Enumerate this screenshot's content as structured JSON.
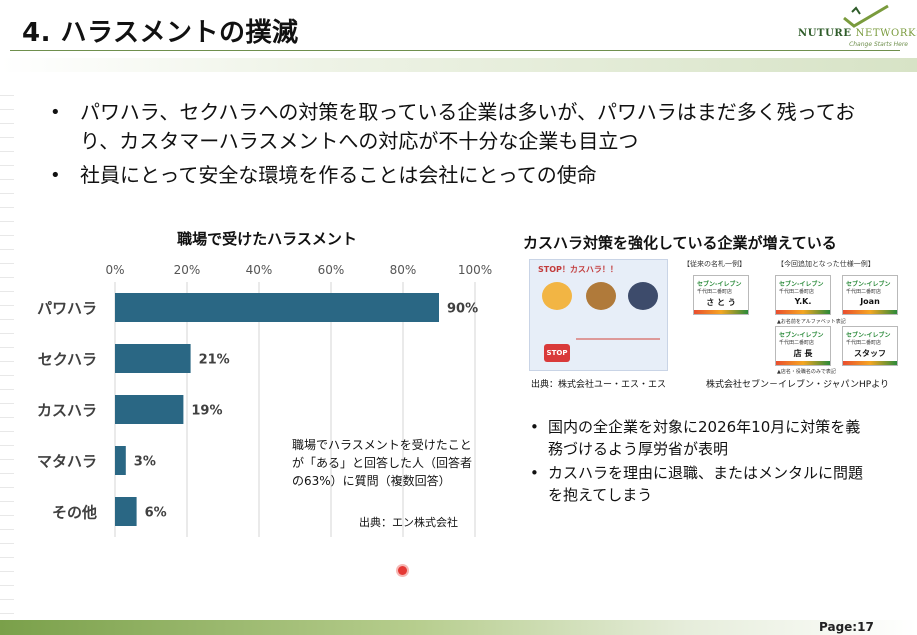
{
  "header": {
    "title": "4. ハラスメントの撲滅",
    "logo_part1": "NUTURE ",
    "logo_part2": "NETWORKS",
    "logo_tagline": "Change Starts Here"
  },
  "bullets": [
    "パワハラ、セクハラへの対策を取っている企業は多いが、パワハラはまだ多く残っており、カスタマーハラスメントへの対応が不十分な企業も目立つ",
    "社員にとって安全な環境を作ることは会社にとっての使命"
  ],
  "chart_data": {
    "type": "bar",
    "orientation": "horizontal",
    "title": "職場で受けたハラスメント",
    "categories": [
      "パワハラ",
      "セクハラ",
      "カスハラ",
      "マタハラ",
      "その他"
    ],
    "values": [
      90,
      21,
      19,
      3,
      6
    ],
    "value_labels": [
      "90%",
      "21%",
      "19%",
      "3%",
      "6%"
    ],
    "xlim": [
      0,
      100
    ],
    "x_ticks": [
      "0%",
      "20%",
      "40%",
      "60%",
      "80%",
      "100%"
    ],
    "ticks_position": "top",
    "grid": true,
    "bar_color": "#2a6784"
  },
  "chart_note": "職場でハラスメントを受けたことが「ある」と回答した人（回答者の63%）に質問（複数回答）",
  "chart_source": "出典：エン株式会社",
  "right_panel": {
    "title": "カスハラ対策を強化している企業が増えている",
    "poster_heading": "STOP！カスハラ！！",
    "poster_stop": "STOP",
    "conventional_label": "【従来の名札一例】",
    "new_label": "【今回追加となった仕様一例】",
    "brand": "セブン-イレブン",
    "shop": "千代田二番町店",
    "badges": [
      "さ と う",
      "Y.K.",
      "Joan",
      "店 長",
      "スタッフ"
    ],
    "note_a": "▲お名前をアルファベット表記",
    "note_b": "▲店名・役職名のみで表記",
    "source_a": "出典：株式会社ユー・エス・エス",
    "source_b": "株式会社セブン－イレブン・ジャパンHPより"
  },
  "bullets_right": [
    "国内の全企業を対象に2026年10月に対策を義務づけるよう厚労省が表明",
    "カスハラを理由に退職、またはメンタルに問題を抱えてしまう"
  ],
  "footer": {
    "page": "Page:17"
  }
}
